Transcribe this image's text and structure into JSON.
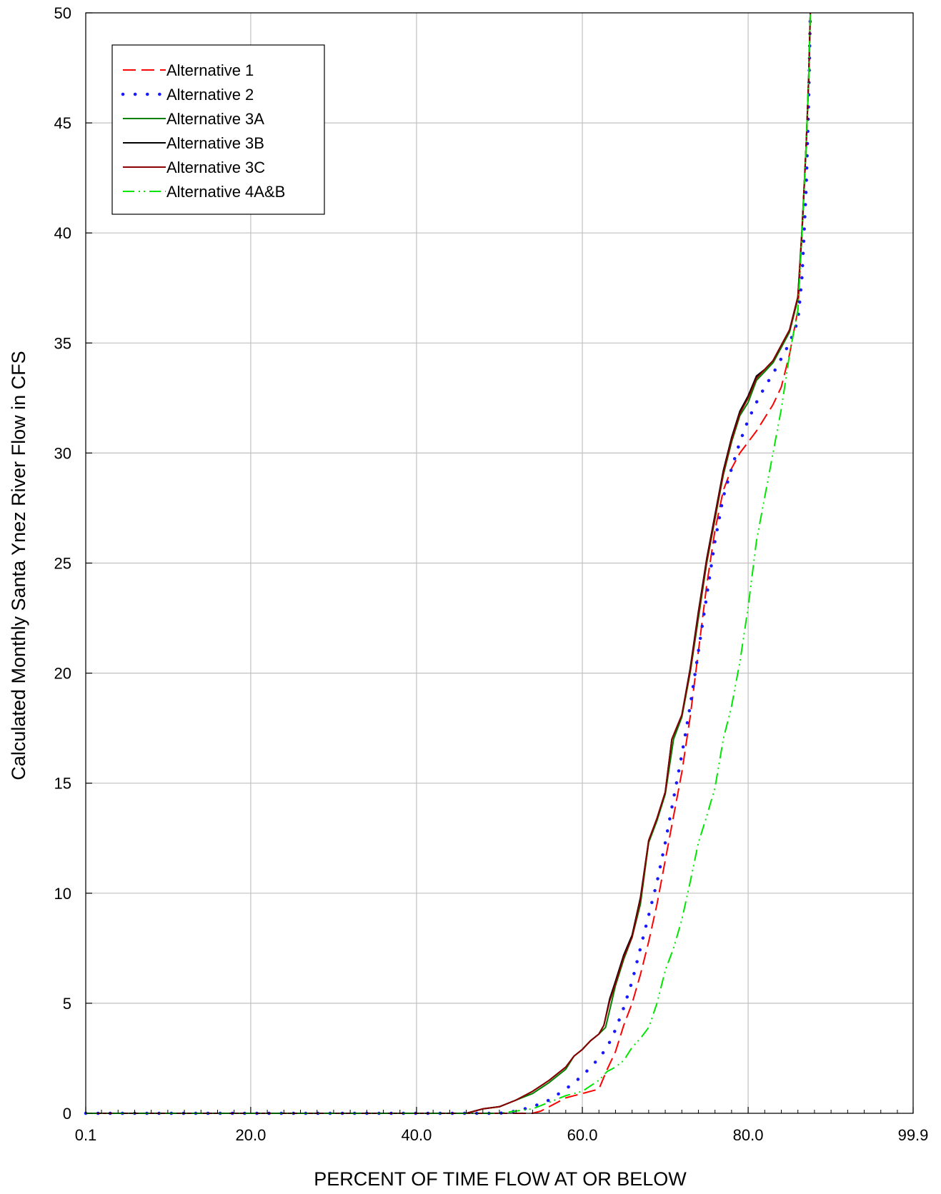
{
  "chart_data": {
    "type": "line",
    "xlabel": "PERCENT OF TIME FLOW AT OR BELOW",
    "ylabel": "Calculated Monthly Santa Ynez River Flow in CFS",
    "xlim": [
      0.1,
      99.9
    ],
    "ylim": [
      0,
      50
    ],
    "x_tick_values": [
      0.1,
      20,
      40,
      60,
      80,
      99.9
    ],
    "x_tick_labels": [
      "0.1",
      "20.0",
      "40.0",
      "60.0",
      "80.0",
      "99.9"
    ],
    "y_tick_values": [
      0,
      5,
      10,
      15,
      20,
      25,
      30,
      35,
      40,
      45,
      50
    ],
    "y_tick_labels": [
      "0",
      "5",
      "10",
      "15",
      "20",
      "25",
      "30",
      "35",
      "40",
      "45",
      "50"
    ],
    "grid": true,
    "legend_position": "top-left",
    "series": [
      {
        "name": "Alternative 1",
        "color": "#ff0000",
        "style": "long-dash",
        "points": [
          [
            0.1,
            0
          ],
          [
            10,
            0
          ],
          [
            20,
            0
          ],
          [
            30,
            0
          ],
          [
            40,
            0
          ],
          [
            45,
            0
          ],
          [
            50,
            0
          ],
          [
            52,
            0
          ],
          [
            54,
            0
          ],
          [
            55,
            0.1
          ],
          [
            56,
            0.3
          ],
          [
            57,
            0.5
          ],
          [
            58,
            0.7
          ],
          [
            59,
            0.8
          ],
          [
            60,
            0.9
          ],
          [
            61,
            1.0
          ],
          [
            62,
            1.1
          ],
          [
            63,
            2.0
          ],
          [
            64,
            2.8
          ],
          [
            65,
            4.0
          ],
          [
            66,
            5.0
          ],
          [
            67,
            6.3
          ],
          [
            68,
            7.8
          ],
          [
            69,
            9.5
          ],
          [
            70,
            11.5
          ],
          [
            71,
            13.5
          ],
          [
            72,
            15.5
          ],
          [
            73,
            18.0
          ],
          [
            74,
            21.0
          ],
          [
            75,
            24.0
          ],
          [
            76,
            26.5
          ],
          [
            77,
            28.3
          ],
          [
            78,
            29.3
          ],
          [
            79,
            30.0
          ],
          [
            80,
            30.5
          ],
          [
            81,
            31.0
          ],
          [
            82,
            31.6
          ],
          [
            83,
            32.2
          ],
          [
            84,
            33.0
          ],
          [
            85,
            34.5
          ],
          [
            86,
            36.5
          ],
          [
            86.5,
            40.0
          ],
          [
            87,
            44.0
          ],
          [
            87.3,
            47.0
          ],
          [
            87.5,
            50.0
          ]
        ]
      },
      {
        "name": "Alternative 2",
        "color": "#1a1aff",
        "style": "dotted",
        "points": [
          [
            0.1,
            0
          ],
          [
            10,
            0
          ],
          [
            20,
            0
          ],
          [
            30,
            0
          ],
          [
            40,
            0
          ],
          [
            45,
            0
          ],
          [
            48,
            0
          ],
          [
            50,
            0
          ],
          [
            52,
            0.1
          ],
          [
            54,
            0.3
          ],
          [
            56,
            0.6
          ],
          [
            58,
            1.1
          ],
          [
            60,
            1.7
          ],
          [
            61,
            2.1
          ],
          [
            62,
            2.5
          ],
          [
            63,
            3.0
          ],
          [
            64,
            3.8
          ],
          [
            65,
            4.8
          ],
          [
            66,
            6.0
          ],
          [
            67,
            7.5
          ],
          [
            68,
            9.0
          ],
          [
            69,
            10.5
          ],
          [
            70,
            12.3
          ],
          [
            71,
            14.3
          ],
          [
            72,
            16.3
          ],
          [
            73,
            18.5
          ],
          [
            74,
            21.0
          ],
          [
            75,
            23.5
          ],
          [
            76,
            26.0
          ],
          [
            77,
            28.0
          ],
          [
            78,
            29.3
          ],
          [
            79,
            30.5
          ],
          [
            80,
            31.5
          ],
          [
            81,
            32.3
          ],
          [
            82,
            33.0
          ],
          [
            83,
            33.6
          ],
          [
            84,
            34.3
          ],
          [
            85,
            35.0
          ],
          [
            86,
            36.0
          ],
          [
            86.5,
            38.0
          ],
          [
            87,
            42.0
          ],
          [
            87.3,
            46.0
          ],
          [
            87.5,
            50.0
          ]
        ]
      },
      {
        "name": "Alternative 3A",
        "color": "#008000",
        "style": "solid",
        "points": [
          [
            0.1,
            0
          ],
          [
            10,
            0
          ],
          [
            20,
            0
          ],
          [
            30,
            0
          ],
          [
            40,
            0
          ],
          [
            44,
            0
          ],
          [
            46,
            0
          ],
          [
            47,
            0.1
          ],
          [
            48,
            0.2
          ],
          [
            50,
            0.3
          ],
          [
            52,
            0.6
          ],
          [
            54,
            0.9
          ],
          [
            56,
            1.4
          ],
          [
            58,
            2.0
          ],
          [
            59,
            2.6
          ],
          [
            60,
            2.9
          ],
          [
            61,
            3.3
          ],
          [
            62,
            3.6
          ],
          [
            62.8,
            3.9
          ],
          [
            63.5,
            5.0
          ],
          [
            64,
            5.8
          ],
          [
            65,
            7.0
          ],
          [
            66,
            8.0
          ],
          [
            67,
            9.5
          ],
          [
            68,
            12.3
          ],
          [
            69,
            13.3
          ],
          [
            70,
            14.5
          ],
          [
            71,
            17.0
          ],
          [
            72,
            18.0
          ],
          [
            73,
            20.0
          ],
          [
            74,
            22.5
          ],
          [
            75,
            25.0
          ],
          [
            76,
            27.0
          ],
          [
            77,
            29.0
          ],
          [
            78,
            30.5
          ],
          [
            79,
            31.7
          ],
          [
            80,
            32.3
          ],
          [
            81,
            33.3
          ],
          [
            82,
            33.7
          ],
          [
            83,
            34.1
          ],
          [
            84,
            34.8
          ],
          [
            85,
            35.5
          ],
          [
            86,
            37.0
          ],
          [
            86.5,
            40.0
          ],
          [
            87,
            44.0
          ],
          [
            87.3,
            47.0
          ],
          [
            87.5,
            50.0
          ]
        ]
      },
      {
        "name": "Alternative 3B",
        "color": "#000000",
        "style": "solid",
        "points": [
          [
            0.1,
            0
          ],
          [
            10,
            0
          ],
          [
            20,
            0
          ],
          [
            30,
            0
          ],
          [
            40,
            0
          ],
          [
            44,
            0
          ],
          [
            46,
            0
          ],
          [
            47,
            0.1
          ],
          [
            48,
            0.2
          ],
          [
            50,
            0.3
          ],
          [
            52,
            0.6
          ],
          [
            54,
            1.0
          ],
          [
            56,
            1.5
          ],
          [
            58,
            2.1
          ],
          [
            59,
            2.6
          ],
          [
            60,
            2.9
          ],
          [
            61,
            3.3
          ],
          [
            62,
            3.6
          ],
          [
            62.6,
            4.0
          ],
          [
            63.3,
            5.2
          ],
          [
            64,
            6.0
          ],
          [
            65,
            7.2
          ],
          [
            66,
            8.1
          ],
          [
            67,
            9.8
          ],
          [
            68,
            12.4
          ],
          [
            69,
            13.4
          ],
          [
            70,
            14.6
          ],
          [
            70.8,
            17.0
          ],
          [
            72,
            18.1
          ],
          [
            73,
            20.2
          ],
          [
            74,
            22.8
          ],
          [
            75,
            25.2
          ],
          [
            76,
            27.2
          ],
          [
            77,
            29.2
          ],
          [
            78,
            30.7
          ],
          [
            79,
            31.9
          ],
          [
            80,
            32.6
          ],
          [
            81,
            33.5
          ],
          [
            82,
            33.8
          ],
          [
            83,
            34.2
          ],
          [
            84,
            34.9
          ],
          [
            85,
            35.6
          ],
          [
            86,
            37.1
          ],
          [
            86.5,
            40.2
          ],
          [
            87,
            44.0
          ],
          [
            87.3,
            47.0
          ],
          [
            87.5,
            50.0
          ]
        ]
      },
      {
        "name": "Alternative 3C",
        "color": "#8b0000",
        "style": "solid",
        "points": [
          [
            0.1,
            0
          ],
          [
            10,
            0
          ],
          [
            20,
            0
          ],
          [
            30,
            0
          ],
          [
            40,
            0
          ],
          [
            44,
            0
          ],
          [
            46,
            0
          ],
          [
            47,
            0.1
          ],
          [
            48,
            0.2
          ],
          [
            50,
            0.3
          ],
          [
            52,
            0.6
          ],
          [
            54,
            1.0
          ],
          [
            56,
            1.5
          ],
          [
            58,
            2.1
          ],
          [
            59,
            2.6
          ],
          [
            60,
            2.9
          ],
          [
            61,
            3.3
          ],
          [
            62,
            3.6
          ],
          [
            62.6,
            4.0
          ],
          [
            63.3,
            5.1
          ],
          [
            64,
            5.9
          ],
          [
            65,
            7.1
          ],
          [
            66,
            8.0
          ],
          [
            67,
            9.7
          ],
          [
            68,
            12.4
          ],
          [
            69,
            13.4
          ],
          [
            70,
            14.6
          ],
          [
            70.8,
            17.0
          ],
          [
            72,
            18.1
          ],
          [
            73,
            20.1
          ],
          [
            74,
            22.7
          ],
          [
            75,
            25.1
          ],
          [
            76,
            27.1
          ],
          [
            77,
            29.1
          ],
          [
            78,
            30.6
          ],
          [
            79,
            31.8
          ],
          [
            80,
            32.5
          ],
          [
            81,
            33.4
          ],
          [
            82,
            33.8
          ],
          [
            83,
            34.2
          ],
          [
            84,
            34.9
          ],
          [
            85,
            35.6
          ],
          [
            86,
            37.1
          ],
          [
            86.5,
            40.1
          ],
          [
            87,
            44.0
          ],
          [
            87.3,
            47.0
          ],
          [
            87.5,
            50.0
          ]
        ]
      },
      {
        "name": "Alternative 4A&B",
        "color": "#00e600",
        "style": "dash-dot-dot",
        "points": [
          [
            0.1,
            0
          ],
          [
            10,
            0
          ],
          [
            20,
            0
          ],
          [
            30,
            0
          ],
          [
            40,
            0
          ],
          [
            45,
            0
          ],
          [
            48,
            0
          ],
          [
            50,
            0
          ],
          [
            52,
            0.1
          ],
          [
            54,
            0.2
          ],
          [
            56,
            0.5
          ],
          [
            58,
            0.8
          ],
          [
            60,
            1.0
          ],
          [
            62,
            1.5
          ],
          [
            63,
            1.9
          ],
          [
            64,
            2.1
          ],
          [
            65,
            2.4
          ],
          [
            66,
            3.0
          ],
          [
            67,
            3.4
          ],
          [
            68,
            3.9
          ],
          [
            69,
            5.0
          ],
          [
            70,
            6.5
          ],
          [
            71,
            7.5
          ],
          [
            72,
            8.8
          ],
          [
            73,
            10.5
          ],
          [
            74,
            12.3
          ],
          [
            75,
            13.5
          ],
          [
            76,
            14.8
          ],
          [
            77,
            17.0
          ],
          [
            78,
            18.5
          ],
          [
            79,
            20.5
          ],
          [
            80,
            23.0
          ],
          [
            81,
            26.0
          ],
          [
            82,
            28.0
          ],
          [
            83,
            30.0
          ],
          [
            84,
            32.0
          ],
          [
            85,
            34.5
          ],
          [
            86,
            36.5
          ],
          [
            86.5,
            40.0
          ],
          [
            87,
            44.0
          ],
          [
            87.3,
            47.0
          ],
          [
            87.5,
            50.0
          ]
        ]
      }
    ]
  }
}
